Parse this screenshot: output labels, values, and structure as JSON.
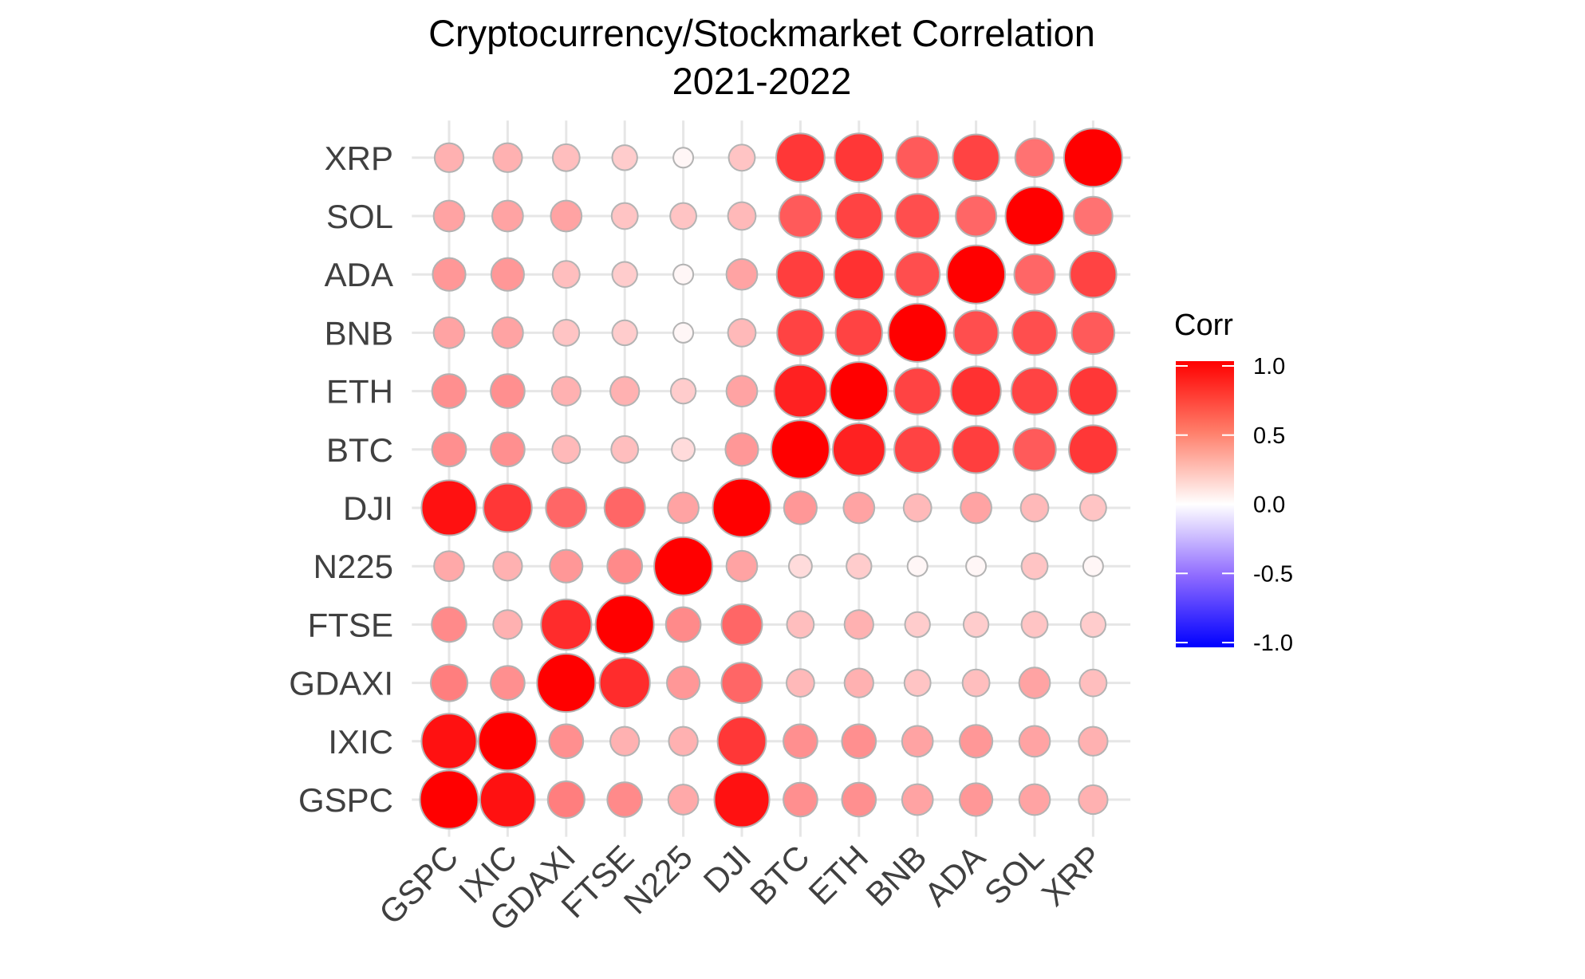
{
  "chart_data": {
    "type": "heatmap",
    "style": "correlation-circle-matrix",
    "title_lines": [
      "Cryptocurrency/Stockmarket Correlation",
      "2021-2022"
    ],
    "xlabel": "",
    "ylabel": "",
    "x_categories": [
      "GSPC",
      "IXIC",
      "GDAXI",
      "FTSE",
      "N225",
      "DJI",
      "BTC",
      "ETH",
      "BNB",
      "ADA",
      "SOL",
      "XRP"
    ],
    "y_categories": [
      "GSPC",
      "IXIC",
      "GDAXI",
      "FTSE",
      "N225",
      "DJI",
      "BTC",
      "ETH",
      "BNB",
      "ADA",
      "SOL",
      "XRP"
    ],
    "values": [
      [
        1.0,
        0.92,
        0.45,
        0.4,
        0.28,
        0.92,
        0.38,
        0.38,
        0.3,
        0.35,
        0.3,
        0.25
      ],
      [
        0.92,
        1.0,
        0.38,
        0.25,
        0.25,
        0.75,
        0.38,
        0.38,
        0.3,
        0.35,
        0.3,
        0.25
      ],
      [
        0.45,
        0.38,
        1.0,
        0.8,
        0.35,
        0.55,
        0.22,
        0.25,
        0.18,
        0.2,
        0.3,
        0.2
      ],
      [
        0.4,
        0.25,
        0.8,
        1.0,
        0.4,
        0.55,
        0.2,
        0.25,
        0.15,
        0.15,
        0.18,
        0.15
      ],
      [
        0.28,
        0.25,
        0.35,
        0.4,
        1.0,
        0.3,
        0.1,
        0.15,
        0.02,
        0.02,
        0.18,
        0.02
      ],
      [
        0.92,
        0.75,
        0.55,
        0.55,
        0.3,
        1.0,
        0.35,
        0.3,
        0.22,
        0.3,
        0.22,
        0.18
      ],
      [
        0.38,
        0.38,
        0.22,
        0.2,
        0.1,
        0.35,
        1.0,
        0.85,
        0.7,
        0.72,
        0.6,
        0.75
      ],
      [
        0.38,
        0.38,
        0.25,
        0.25,
        0.15,
        0.3,
        0.85,
        1.0,
        0.7,
        0.78,
        0.7,
        0.75
      ],
      [
        0.3,
        0.3,
        0.18,
        0.15,
        0.02,
        0.22,
        0.7,
        0.7,
        1.0,
        0.65,
        0.65,
        0.6
      ],
      [
        0.35,
        0.35,
        0.2,
        0.15,
        0.02,
        0.3,
        0.72,
        0.78,
        0.65,
        1.0,
        0.55,
        0.7
      ],
      [
        0.3,
        0.3,
        0.3,
        0.18,
        0.18,
        0.22,
        0.6,
        0.7,
        0.65,
        0.55,
        1.0,
        0.5
      ],
      [
        0.25,
        0.25,
        0.2,
        0.15,
        0.02,
        0.18,
        0.75,
        0.75,
        0.6,
        0.7,
        0.5,
        1.0
      ]
    ],
    "value_encoding": "circle color and size both map to correlation",
    "legend": {
      "title": "Corr",
      "position": "right",
      "scale": "diverging",
      "low_color": "#0000ff",
      "mid_color": "#ffffff",
      "high_color": "#ff0000",
      "range": [
        -1,
        1
      ],
      "tick_labels": [
        "1.0",
        "0.5",
        "0.0",
        "-0.5",
        "-1.0"
      ],
      "tick_values": [
        1,
        0.5,
        0,
        -0.5,
        -1
      ]
    },
    "grid": true,
    "circle_outline_color": "#b3b3b3"
  }
}
